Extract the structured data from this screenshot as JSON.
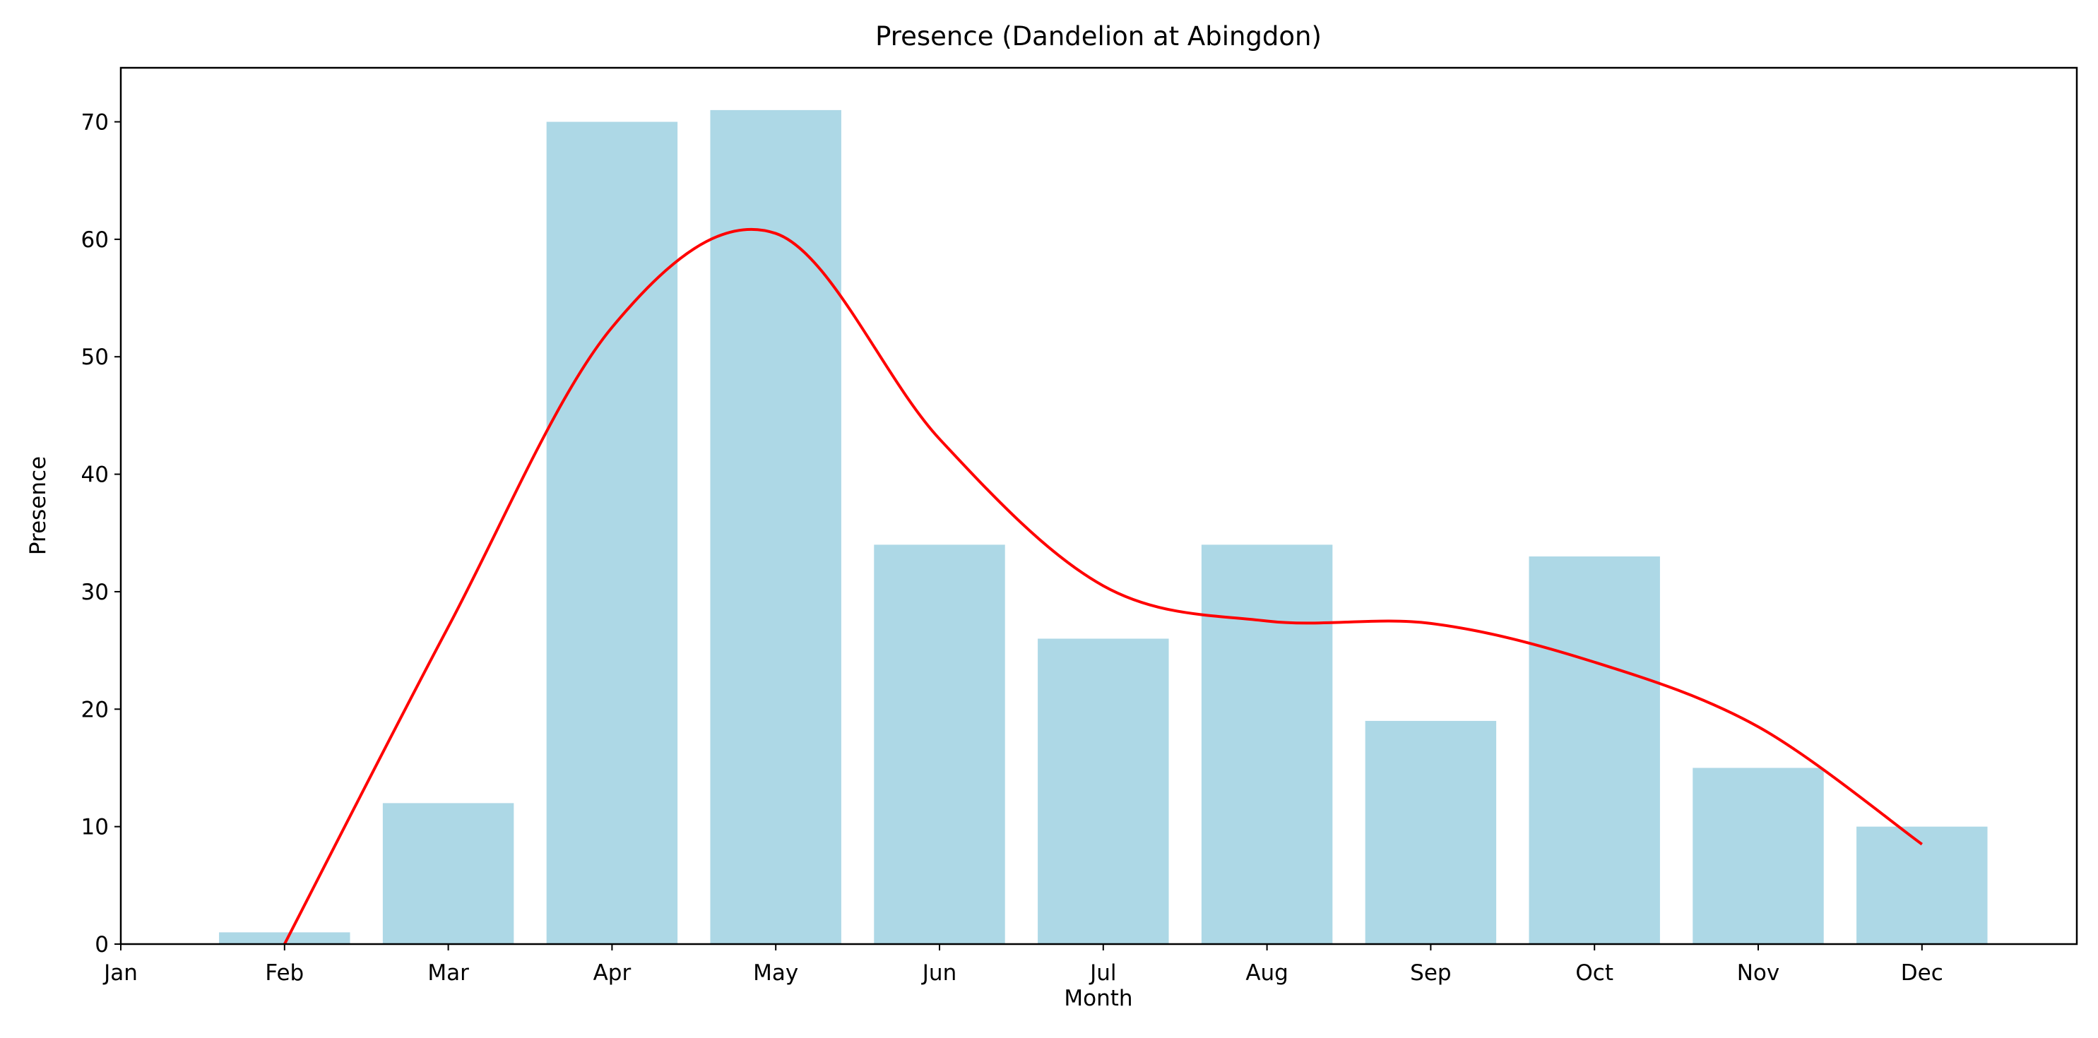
{
  "chart_data": {
    "type": "bar",
    "title": "Presence (Dandelion at Abingdon)",
    "xlabel": "Month",
    "ylabel": "Presence",
    "categories": [
      "Jan",
      "Feb",
      "Mar",
      "Apr",
      "May",
      "Jun",
      "Jul",
      "Aug",
      "Sep",
      "Oct",
      "Nov",
      "Dec"
    ],
    "values": [
      0,
      1,
      12,
      70,
      71,
      34,
      26,
      34,
      19,
      33,
      15,
      10
    ],
    "yticks": [
      0,
      10,
      20,
      30,
      40,
      50,
      60,
      70
    ],
    "ylim": [
      0,
      74.6
    ],
    "grid": false,
    "bar_color": "#add8e6",
    "trend_line": {
      "type": "line",
      "color": "#ff0000",
      "categories": [
        "Feb",
        "Mar",
        "Apr",
        "May",
        "Jun",
        "Jul",
        "Aug",
        "Sep",
        "Oct",
        "Nov",
        "Dec"
      ],
      "values": [
        0,
        27,
        52.5,
        60.5,
        43,
        30.5,
        27.5,
        27.3,
        24,
        18.5,
        8.5
      ]
    }
  }
}
